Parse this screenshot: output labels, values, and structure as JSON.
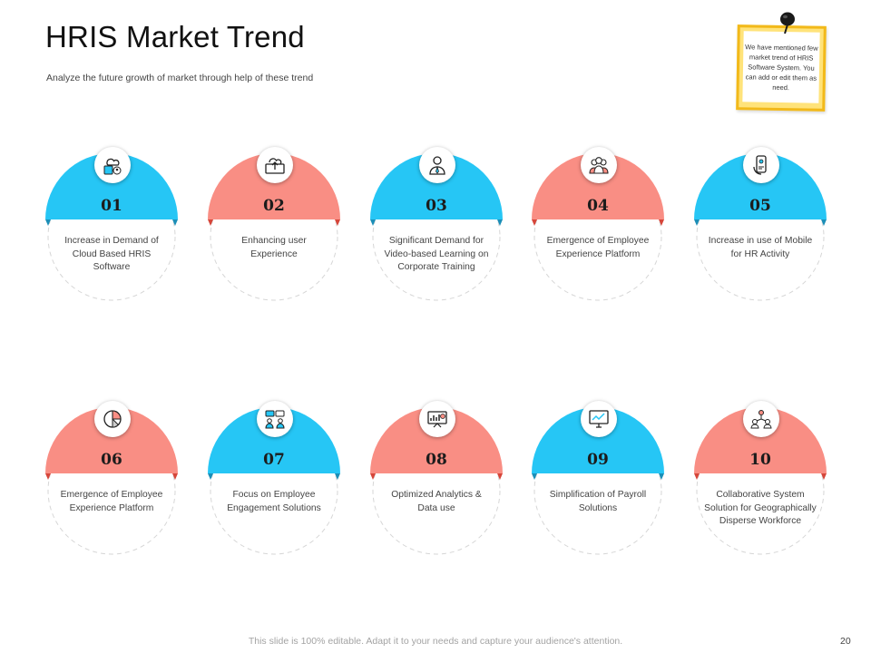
{
  "header": {
    "title": "HRIS Market Trend",
    "subtitle": "Analyze  the future growth of market through help of these trend"
  },
  "note": {
    "text": "We have mentioned few market  trend of HRIS Software System.  You can add or edit them as need."
  },
  "colors": {
    "blue": "#26c6f5",
    "salmon": "#f98e84",
    "blue_dark": "#1b8fb8",
    "salmon_dark": "#d6463a"
  },
  "trends": [
    {
      "number": "01",
      "text": "Increase in Demand of Cloud Based HRIS Software",
      "color": "blue",
      "icon": "cloud-user-icon"
    },
    {
      "number": "02",
      "text": "Enhancing user Experience",
      "color": "salmon",
      "icon": "cloud-upload-monitor-icon"
    },
    {
      "number": "03",
      "text": "Significant Demand  for Video-based Learning on Corporate Training",
      "color": "blue",
      "icon": "businessman-icon"
    },
    {
      "number": "04",
      "text": "Emergence of Employee Experience Platform",
      "color": "salmon",
      "icon": "team-icon"
    },
    {
      "number": "05",
      "text": "Increase in use of Mobile for HR Activity",
      "color": "blue",
      "icon": "mobile-hand-icon"
    },
    {
      "number": "06",
      "text": "Emergence of Employee Experience Platform",
      "color": "salmon",
      "icon": "pie-chart-icon"
    },
    {
      "number": "07",
      "text": "Focus on Employee Engagement Solutions",
      "color": "blue",
      "icon": "chat-people-icon"
    },
    {
      "number": "08",
      "text": "Optimized Analytics & Data use",
      "color": "salmon",
      "icon": "analytics-board-icon"
    },
    {
      "number": "09",
      "text": "Simplification of Payroll Solutions",
      "color": "blue",
      "icon": "monitor-chart-icon"
    },
    {
      "number": "10",
      "text": "Collaborative System Solution  for Geographically Disperse Workforce",
      "color": "salmon",
      "icon": "network-people-icon"
    }
  ],
  "footer": {
    "text": "This slide is 100% editable. Adapt it to your needs and capture your audience's attention.",
    "page": "20"
  }
}
